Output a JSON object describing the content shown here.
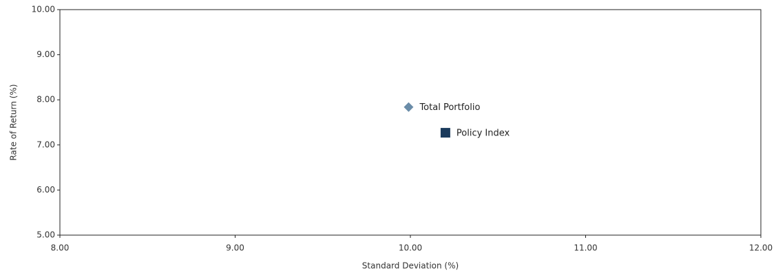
{
  "chart_data": {
    "type": "scatter",
    "x_label": "Standard Deviation (%)",
    "y_label": "Rate of Return (%)",
    "xlim": [
      8,
      12
    ],
    "xticks": [
      {
        "value": 8,
        "label": "8.00"
      },
      {
        "value": 9,
        "label": "9.00"
      },
      {
        "value": 10,
        "label": "10.00"
      },
      {
        "value": 11,
        "label": "11.00"
      },
      {
        "value": 12,
        "label": "12.00"
      }
    ],
    "ylim": [
      5,
      10
    ],
    "yticks": [
      {
        "value": 5,
        "label": "5.00"
      },
      {
        "value": 6,
        "label": "6.00"
      },
      {
        "value": 7,
        "label": "7.00"
      },
      {
        "value": 8,
        "label": "8.00"
      },
      {
        "value": 9,
        "label": "9.00"
      },
      {
        "value": 10,
        "label": "10.00"
      }
    ],
    "grid": false,
    "series": [
      {
        "name": "Total Portfolio",
        "color": "#6a8ca8",
        "marker": "diamond",
        "x": [
          9.99
        ],
        "values": [
          7.84
        ]
      },
      {
        "name": "Policy Index",
        "color": "#1a3a5c",
        "marker": "square",
        "x": [
          10.2
        ],
        "values": [
          7.27
        ]
      }
    ]
  }
}
